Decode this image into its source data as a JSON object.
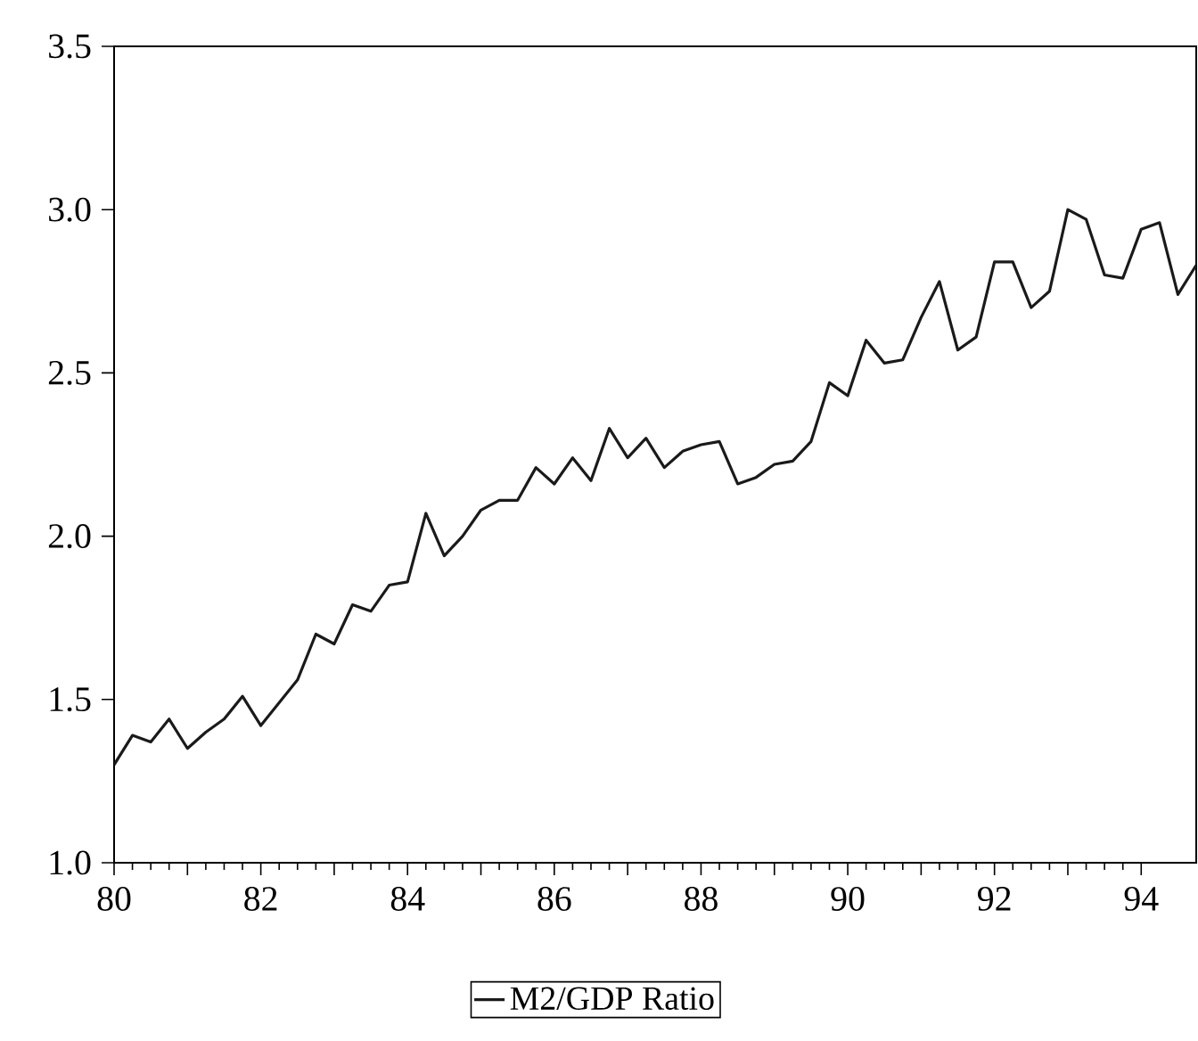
{
  "chart_data": {
    "type": "line",
    "x": [
      1980,
      1980.25,
      1980.5,
      1980.75,
      1981,
      1981.25,
      1981.5,
      1981.75,
      1982,
      1982.25,
      1982.5,
      1982.75,
      1983,
      1983.25,
      1983.5,
      1983.75,
      1984,
      1984.25,
      1984.5,
      1984.75,
      1985,
      1985.25,
      1985.5,
      1985.75,
      1986,
      1986.25,
      1986.5,
      1986.75,
      1987,
      1987.25,
      1987.5,
      1987.75,
      1988,
      1988.25,
      1988.5,
      1988.75,
      1989,
      1989.25,
      1989.5,
      1989.75,
      1990,
      1990.25,
      1990.5,
      1990.75,
      1991,
      1991.25,
      1991.5,
      1991.75,
      1992,
      1992.25,
      1992.5,
      1992.75,
      1993,
      1993.25,
      1993.5,
      1993.75,
      1994,
      1994.25,
      1994.5,
      1994.75
    ],
    "series": [
      {
        "name": "M2/GDP Ratio",
        "color": "#1a1a1a",
        "values": [
          1.3,
          1.39,
          1.37,
          1.44,
          1.35,
          1.4,
          1.44,
          1.51,
          1.42,
          1.49,
          1.56,
          1.7,
          1.67,
          1.79,
          1.77,
          1.85,
          1.86,
          2.07,
          1.94,
          2.0,
          2.08,
          2.11,
          2.11,
          2.21,
          2.16,
          2.24,
          2.17,
          2.33,
          2.24,
          2.3,
          2.21,
          2.26,
          2.28,
          2.29,
          2.16,
          2.18,
          2.22,
          2.23,
          2.29,
          2.47,
          2.43,
          2.6,
          2.53,
          2.54,
          2.67,
          2.78,
          2.57,
          2.61,
          2.84,
          2.84,
          2.7,
          2.75,
          3.0,
          2.97,
          2.8,
          2.79,
          2.94,
          2.96,
          2.74,
          2.83
        ]
      }
    ],
    "xlim": [
      1980,
      1994.75
    ],
    "xticks": [
      {
        "value": 1980,
        "label": "80"
      },
      {
        "value": 1981,
        "label": null
      },
      {
        "value": 1982,
        "label": "82"
      },
      {
        "value": 1983,
        "label": null
      },
      {
        "value": 1984,
        "label": "84"
      },
      {
        "value": 1985,
        "label": null
      },
      {
        "value": 1986,
        "label": "86"
      },
      {
        "value": 1987,
        "label": null
      },
      {
        "value": 1988,
        "label": "88"
      },
      {
        "value": 1989,
        "label": null
      },
      {
        "value": 1990,
        "label": "90"
      },
      {
        "value": 1991,
        "label": null
      },
      {
        "value": 1992,
        "label": "92"
      },
      {
        "value": 1993,
        "label": null
      },
      {
        "value": 1994,
        "label": "94"
      }
    ],
    "ylim": [
      1.0,
      3.5
    ],
    "yticks": [
      {
        "value": 1.0,
        "label": "1.0"
      },
      {
        "value": 1.5,
        "label": "1.5"
      },
      {
        "value": 2.0,
        "label": "2.0"
      },
      {
        "value": 2.5,
        "label": "2.5"
      },
      {
        "value": 3.0,
        "label": "3.0"
      },
      {
        "value": 3.5,
        "label": "3.5"
      }
    ],
    "legend": "bottom",
    "grid": false,
    "line_style": "solid",
    "marker": "none"
  }
}
